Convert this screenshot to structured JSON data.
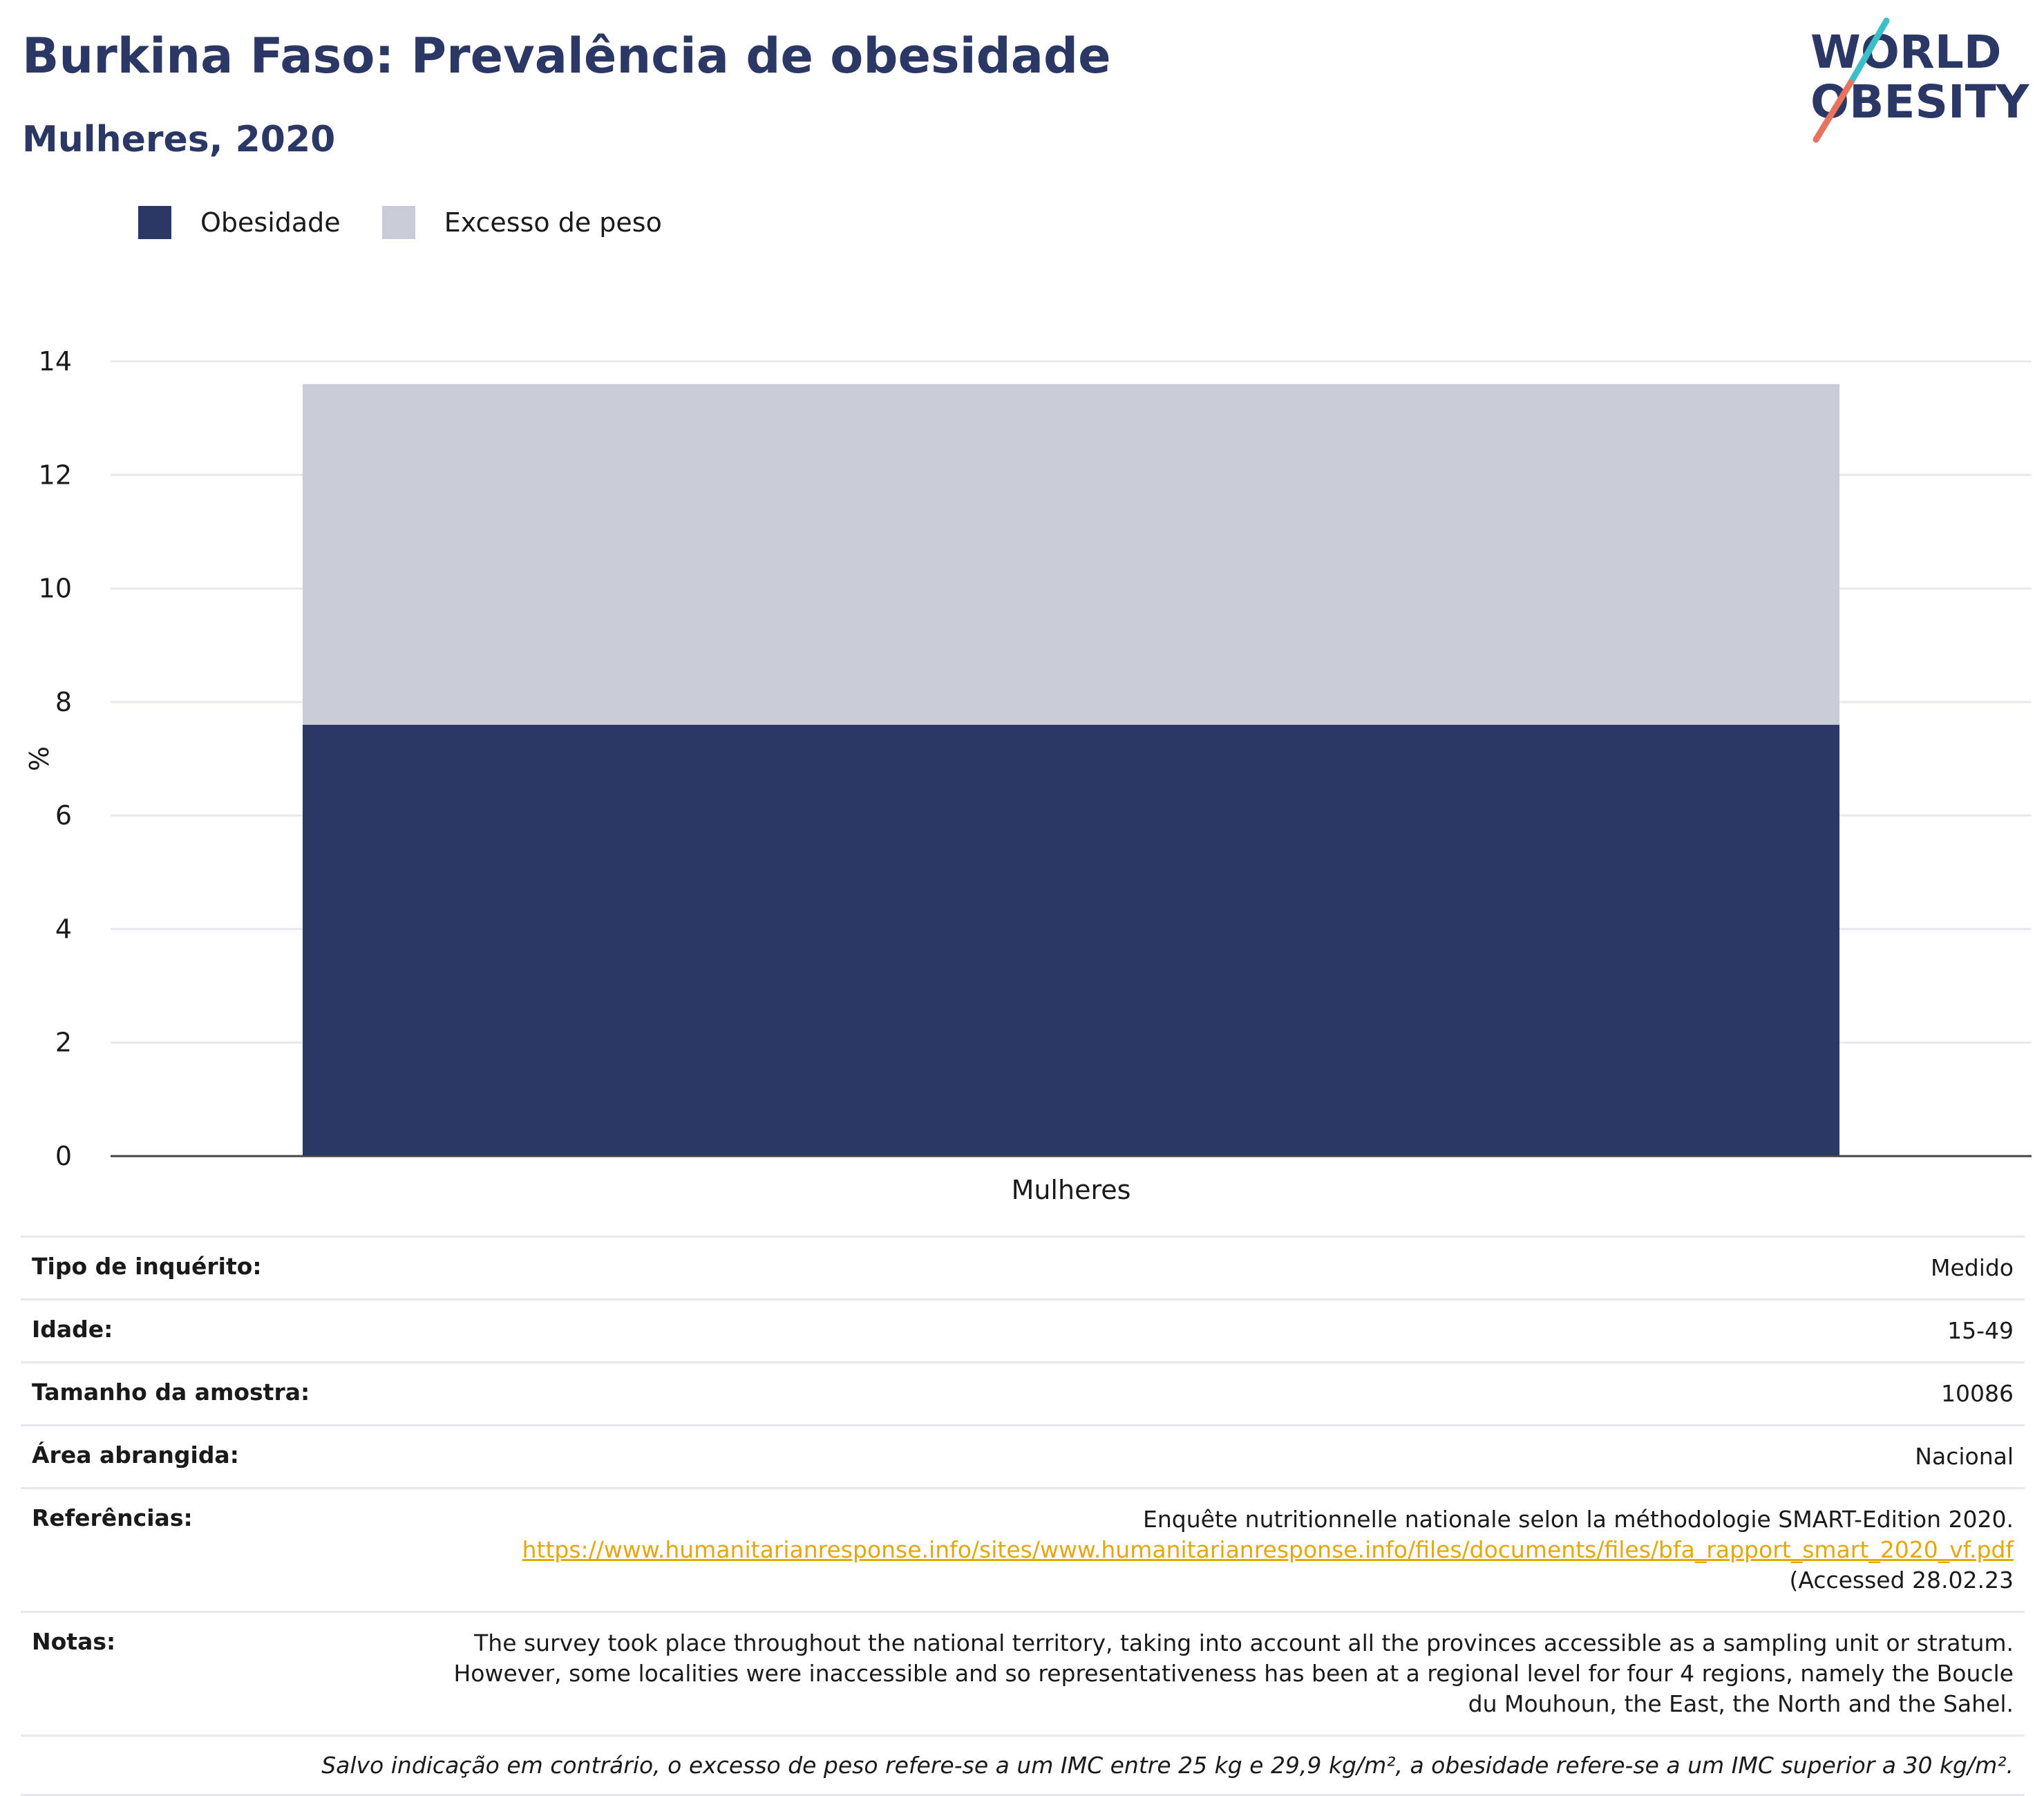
{
  "header": {
    "title": "Burkina Faso: Prevalência de obesidade",
    "subtitle": "Mulheres, 2020"
  },
  "logo": {
    "line1": "WORLD",
    "line2": "OBESITY"
  },
  "colors": {
    "obesity": "#2b3764",
    "overweight": "#c9ccd7",
    "brand_text": "#2b3764",
    "link": "#e4a70c"
  },
  "chart_data": {
    "type": "bar",
    "stacked": true,
    "categories": [
      "Mulheres"
    ],
    "series": [
      {
        "name": "Obesidade",
        "values": [
          7.6
        ],
        "color": "#2b3764"
      },
      {
        "name": "Excesso de peso",
        "values": [
          6.0
        ],
        "color": "#c9ccd7"
      }
    ],
    "ylabel": "%",
    "ylim": [
      0,
      14
    ],
    "yticks": [
      0,
      2,
      4,
      6,
      8,
      10,
      12,
      14
    ],
    "grid": true,
    "legend_position": "top-left"
  },
  "info": {
    "survey_type": {
      "label": "Tipo de inquérito:",
      "value": "Medido"
    },
    "age": {
      "label": "Idade:",
      "value": "15-49"
    },
    "sample_size": {
      "label": "Tamanho da amostra:",
      "value": "10086"
    },
    "area": {
      "label": "Área abrangida:",
      "value": "Nacional"
    },
    "references": {
      "label": "Referências:",
      "line1": "Enquête nutritionnelle nationale selon la méthodologie SMART-Edition 2020.",
      "url": "https://www.humanitarianresponse.info/sites/www.humanitarianresponse.info/files/documents/files/bfa_rapport_smart_2020_vf.pdf",
      "accessed": "(Accessed 28.02.23"
    },
    "notes": {
      "label": "Notas:",
      "line1": "The survey took place throughout the national territory, taking into account all the provinces accessible as a sampling unit or stratum.",
      "line2": "However, some localities were inaccessible and so representativeness has been at a regional level for four 4 regions, namely the Boucle",
      "line3": "du Mouhoun, the East, the North and the Sahel."
    },
    "footnote": "Salvo indicação em contrário, o excesso de peso refere-se a um IMC entre 25 kg e 29,9 kg/m², a obesidade refere-se a um IMC superior a 30 kg/m²."
  }
}
